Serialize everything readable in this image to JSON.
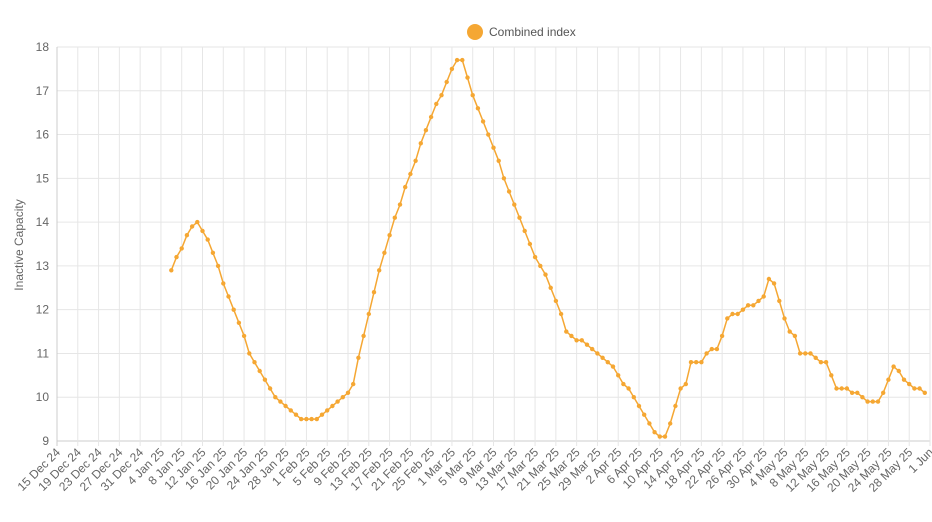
{
  "chart_data": {
    "type": "line",
    "ylabel": "Inactive Capacity",
    "ylim": [
      9,
      18
    ],
    "y_ticks": [
      "9",
      "10",
      "11",
      "12",
      "13",
      "14",
      "15",
      "16",
      "17",
      "18"
    ],
    "grid": true,
    "legend_position": "top-center",
    "x_tick_labels": [
      "15 Dec 24",
      "19 Dec 24",
      "23 Dec 24",
      "27 Dec 24",
      "31 Dec 24",
      "4 Jan 25",
      "8 Jan 25",
      "12 Jan 25",
      "16 Jan 25",
      "20 Jan 25",
      "24 Jan 25",
      "28 Jan 25",
      "1 Feb 25",
      "5 Feb 25",
      "9 Feb 25",
      "13 Feb 25",
      "17 Feb 25",
      "21 Feb 25",
      "25 Feb 25",
      "1 Mar 25",
      "5 Mar 25",
      "9 Mar 25",
      "13 Mar 25",
      "17 Mar 25",
      "21 Mar 25",
      "25 Mar 25",
      "29 Mar 25",
      "2 Apr 25",
      "6 Apr 25",
      "10 Apr 25",
      "14 Apr 25",
      "18 Apr 25",
      "22 Apr 25",
      "26 Apr 25",
      "30 Apr 25",
      "4 May 25",
      "8 May 25",
      "12 May 25",
      "16 May 25",
      "20 May 25",
      "24 May 25",
      "28 May 25",
      "1 Jun"
    ],
    "x_tick_step_days": 4,
    "series": [
      {
        "name": "Combined index",
        "color": "#f5a733",
        "start_date": "2025-01-06",
        "values": [
          12.9,
          13.2,
          13.4,
          13.7,
          13.9,
          14.0,
          13.8,
          13.6,
          13.3,
          13.0,
          12.6,
          12.3,
          12.0,
          11.7,
          11.4,
          11.0,
          10.8,
          10.6,
          10.4,
          10.2,
          10.0,
          9.9,
          9.8,
          9.7,
          9.6,
          9.5,
          9.5,
          9.5,
          9.5,
          9.6,
          9.7,
          9.8,
          9.9,
          10.0,
          10.1,
          10.3,
          10.9,
          11.4,
          11.9,
          12.4,
          12.9,
          13.3,
          13.7,
          14.1,
          14.4,
          14.8,
          15.1,
          15.4,
          15.8,
          16.1,
          16.4,
          16.7,
          16.9,
          17.2,
          17.5,
          17.7,
          17.7,
          17.3,
          16.9,
          16.6,
          16.3,
          16.0,
          15.7,
          15.4,
          15.0,
          14.7,
          14.4,
          14.1,
          13.8,
          13.5,
          13.2,
          13.0,
          12.8,
          12.5,
          12.2,
          11.9,
          11.5,
          11.4,
          11.3,
          11.3,
          11.2,
          11.1,
          11.0,
          10.9,
          10.8,
          10.7,
          10.5,
          10.3,
          10.2,
          10.0,
          9.8,
          9.6,
          9.4,
          9.2,
          9.1,
          9.1,
          9.4,
          9.8,
          10.2,
          10.3,
          10.8,
          10.8,
          10.8,
          11.0,
          11.1,
          11.1,
          11.4,
          11.8,
          11.9,
          11.9,
          12.0,
          12.1,
          12.1,
          12.2,
          12.3,
          12.7,
          12.6,
          12.2,
          11.8,
          11.5,
          11.4,
          11.0,
          11.0,
          11.0,
          10.9,
          10.8,
          10.8,
          10.5,
          10.2,
          10.2,
          10.2,
          10.1,
          10.1,
          10.0,
          9.9,
          9.9,
          9.9,
          10.1,
          10.4,
          10.7,
          10.6,
          10.4,
          10.3,
          10.2,
          10.2,
          10.1
        ]
      }
    ]
  }
}
